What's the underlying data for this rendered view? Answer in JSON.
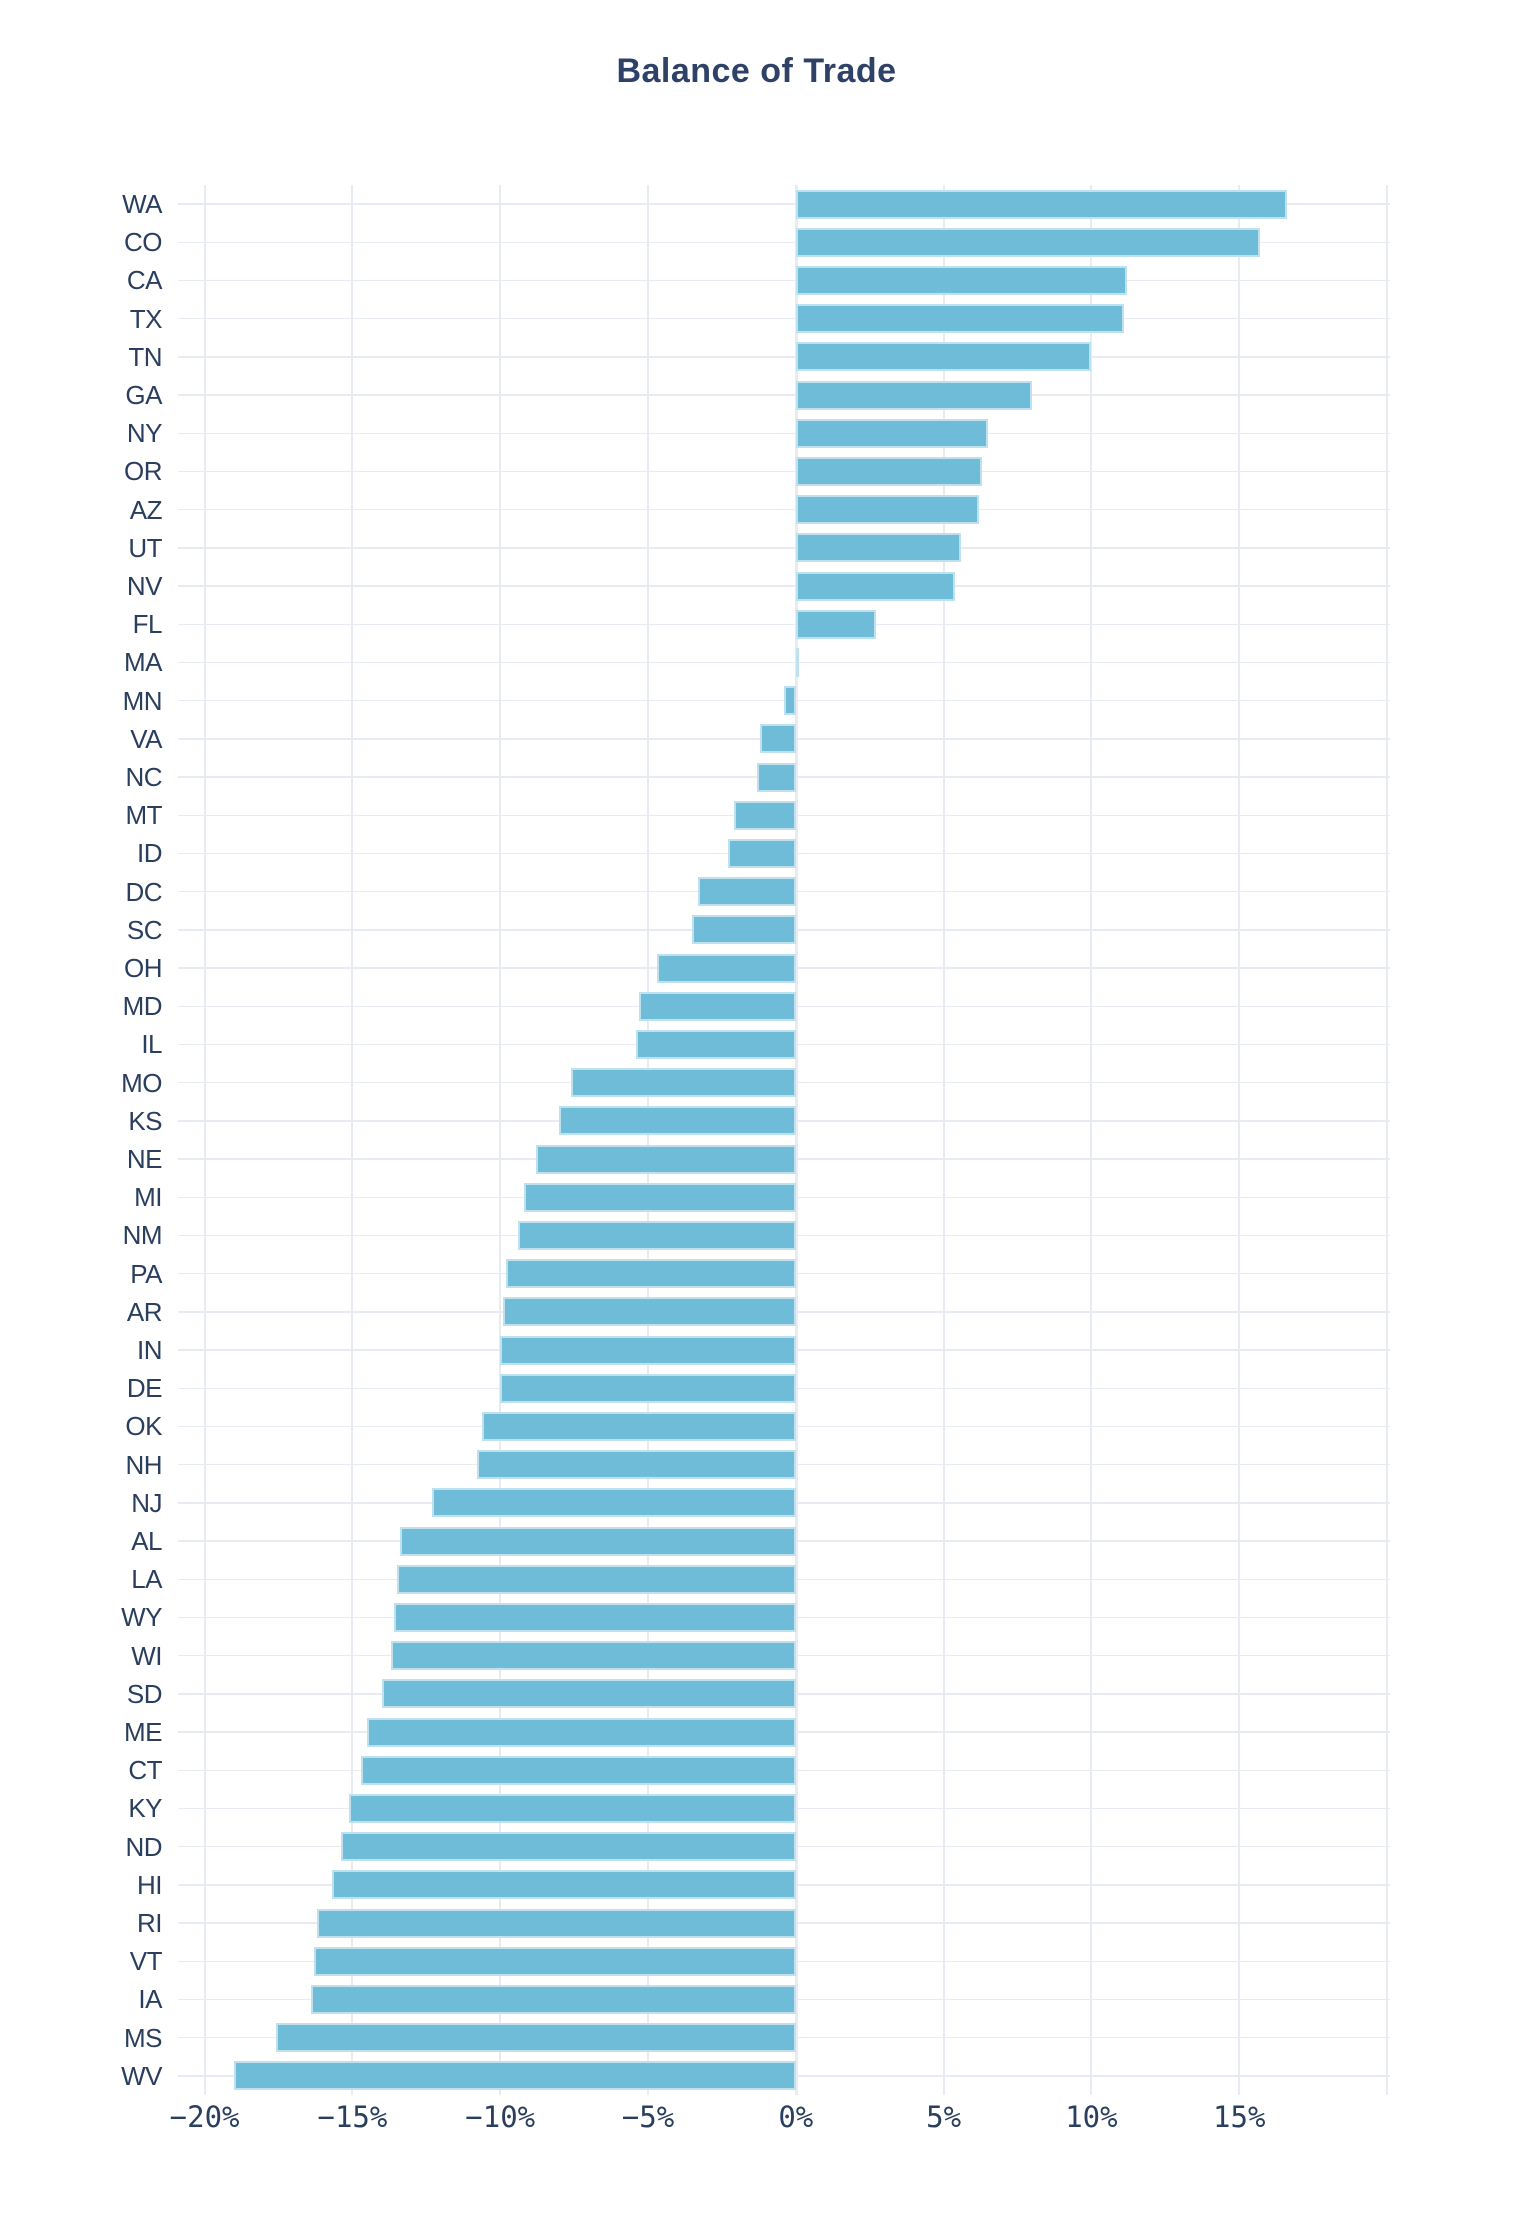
{
  "title": "Balance of Trade",
  "chart_data": {
    "type": "bar",
    "orientation": "horizontal",
    "title": "Balance of Trade",
    "xlabel": "",
    "ylabel": "",
    "unit": "percent",
    "grid": true,
    "legend": false,
    "xlim": [
      -20.9,
      20.1
    ],
    "x_ticks": [
      -20,
      -15,
      -10,
      -5,
      0,
      5,
      10,
      15,
      20
    ],
    "x_tick_labels": [
      "−20%",
      "−15%",
      "−10%",
      "−5%",
      "0%",
      "5%",
      "10%",
      "15%",
      ""
    ],
    "categories": [
      "WA",
      "CO",
      "CA",
      "TX",
      "TN",
      "GA",
      "NY",
      "OR",
      "AZ",
      "UT",
      "NV",
      "FL",
      "MA",
      "MN",
      "VA",
      "NC",
      "MT",
      "ID",
      "DC",
      "SC",
      "OH",
      "MD",
      "IL",
      "MO",
      "KS",
      "NE",
      "MI",
      "NM",
      "PA",
      "AR",
      "IN",
      "DE",
      "OK",
      "NH",
      "NJ",
      "AL",
      "LA",
      "WY",
      "WI",
      "SD",
      "ME",
      "CT",
      "KY",
      "ND",
      "HI",
      "RI",
      "VT",
      "IA",
      "MS",
      "WV"
    ],
    "values": [
      16.6,
      15.7,
      11.2,
      11.1,
      10.0,
      8.0,
      6.5,
      6.3,
      6.2,
      5.6,
      5.4,
      2.7,
      0.1,
      -0.4,
      -1.2,
      -1.3,
      -2.1,
      -2.3,
      -3.3,
      -3.5,
      -4.7,
      -5.3,
      -5.4,
      -7.6,
      -8.0,
      -8.8,
      -9.2,
      -9.4,
      -9.8,
      -9.9,
      -10.0,
      -10.0,
      -10.6,
      -10.8,
      -12.3,
      -13.4,
      -13.5,
      -13.6,
      -13.7,
      -14.0,
      -14.5,
      -14.7,
      -15.1,
      -15.4,
      -15.7,
      -16.2,
      -16.3,
      -16.4,
      -17.6,
      -19.0
    ],
    "bar_color": "#6ebcd8",
    "text_color": "#2a3f5f",
    "grid_color": "#e9ebf2",
    "background_color": "#ffffff"
  }
}
